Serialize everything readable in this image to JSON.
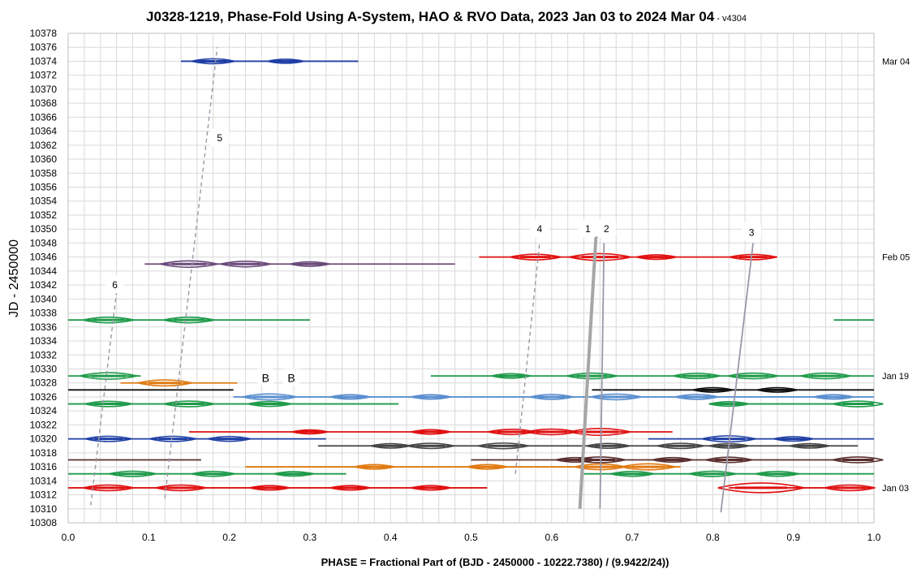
{
  "chart_data": {
    "type": "line",
    "title": "J0328-1219, Phase-Fold Using A-System, HAO & RVO Data, 2023 Jan 03 to 2024 Mar 04",
    "title_suffix": " - v4304",
    "xlabel": "PHASE = Fractional Part of (BJD - 2450000 - 10222.7380) / (9.9422/24))",
    "ylabel": "JD - 2450000",
    "xlim": [
      0,
      1
    ],
    "ylim": [
      10308,
      10378
    ],
    "x_ticks": [
      "0.0",
      "0.1",
      "0.2",
      "0.3",
      "0.4",
      "0.5",
      "0.6",
      "0.7",
      "0.8",
      "0.9",
      "1.0"
    ],
    "y_ticks": [
      "10308",
      "10310",
      "10312",
      "10314",
      "10316",
      "10318",
      "10320",
      "10322",
      "10324",
      "10326",
      "10328",
      "10330",
      "10332",
      "10334",
      "10336",
      "10338",
      "10340",
      "10342",
      "10344",
      "10346",
      "10348",
      "10350",
      "10352",
      "10354",
      "10356",
      "10358",
      "10360",
      "10362",
      "10364",
      "10366",
      "10368",
      "10370",
      "10372",
      "10374",
      "10376",
      "10378"
    ],
    "grid": true,
    "date_labels": [
      {
        "text": "Mar 04",
        "y": 10374
      },
      {
        "text": "Feb 05",
        "y": 10346
      },
      {
        "text": "Jan 19",
        "y": 10329
      },
      {
        "text": "Jan 03",
        "y": 10313
      }
    ],
    "segments": [
      {
        "y": 10374,
        "color": "#1f3fa6",
        "ranges": [
          [
            0.14,
            0.36
          ]
        ],
        "bumps": [
          [
            0.18,
            0.4
          ],
          [
            0.27,
            0.2
          ]
        ]
      },
      {
        "y": 10345,
        "color": "#6b4a7a",
        "ranges": [
          [
            0.095,
            0.48
          ]
        ],
        "bumps": [
          [
            0.15,
            0.8
          ],
          [
            0.22,
            0.6
          ],
          [
            0.3,
            0.3
          ]
        ]
      },
      {
        "y": 10346,
        "color": "#e01010",
        "ranges": [
          [
            0.51,
            0.88
          ]
        ],
        "bumps": [
          [
            0.58,
            0.6
          ],
          [
            0.66,
            0.9
          ],
          [
            0.73,
            0.3
          ],
          [
            0.85,
            0.5
          ]
        ]
      },
      {
        "y": 10337,
        "color": "#1e9a4a",
        "ranges": [
          [
            0.0,
            0.3
          ],
          [
            0.95,
            1.0
          ]
        ],
        "bumps": [
          [
            0.05,
            0.6
          ],
          [
            0.15,
            0.6
          ]
        ]
      },
      {
        "y": 10329,
        "color": "#1e9a4a",
        "ranges": [
          [
            0.0,
            0.09
          ],
          [
            0.45,
            1.0
          ]
        ],
        "bumps": [
          [
            0.05,
            0.8
          ],
          [
            0.55,
            0.3
          ],
          [
            0.65,
            0.6
          ],
          [
            0.78,
            0.5
          ],
          [
            0.85,
            0.6
          ],
          [
            0.94,
            0.6
          ]
        ]
      },
      {
        "y": 10328,
        "color": "#e07a10",
        "ranges": [
          [
            0.065,
            0.21
          ]
        ],
        "bumps": [
          [
            0.12,
            0.7
          ]
        ]
      },
      {
        "y": 10327,
        "color": "#111111",
        "ranges": [
          [
            0.0,
            0.205
          ],
          [
            0.65,
            1.0
          ]
        ],
        "bumps": [
          [
            0.8,
            0.3
          ],
          [
            0.88,
            0.3
          ]
        ]
      },
      {
        "y": 10326,
        "color": "#5b8fcf",
        "ranges": [
          [
            0.205,
            1.0
          ]
        ],
        "bumps": [
          [
            0.25,
            0.7
          ],
          [
            0.35,
            0.3
          ],
          [
            0.45,
            0.3
          ],
          [
            0.6,
            0.4
          ],
          [
            0.68,
            0.6
          ],
          [
            0.78,
            0.4
          ],
          [
            0.95,
            0.3
          ]
        ]
      },
      {
        "y": 10325,
        "color": "#1e9a4a",
        "ranges": [
          [
            0.0,
            0.41
          ],
          [
            0.8,
            1.0
          ]
        ],
        "bumps": [
          [
            0.05,
            0.5
          ],
          [
            0.15,
            0.6
          ],
          [
            0.25,
            0.4
          ],
          [
            0.82,
            0.3
          ],
          [
            0.98,
            0.6
          ]
        ]
      },
      {
        "y": 10321,
        "color": "#e01010",
        "ranges": [
          [
            0.15,
            0.75
          ]
        ],
        "bumps": [
          [
            0.3,
            0.2
          ],
          [
            0.45,
            0.3
          ],
          [
            0.55,
            0.5
          ],
          [
            0.6,
            0.6
          ],
          [
            0.66,
            0.9
          ]
        ]
      },
      {
        "y": 10320,
        "color": "#1f3fa6",
        "ranges": [
          [
            0.0,
            0.32
          ],
          [
            0.72,
            1.0
          ]
        ],
        "bumps": [
          [
            0.05,
            0.5
          ],
          [
            0.13,
            0.5
          ],
          [
            0.2,
            0.4
          ],
          [
            0.82,
            0.7
          ],
          [
            0.9,
            0.3
          ]
        ]
      },
      {
        "y": 10319,
        "color": "#444444",
        "ranges": [
          [
            0.31,
            0.98
          ]
        ],
        "bumps": [
          [
            0.4,
            0.3
          ],
          [
            0.45,
            0.5
          ],
          [
            0.54,
            0.6
          ],
          [
            0.67,
            0.4
          ],
          [
            0.76,
            0.5
          ],
          [
            0.82,
            0.3
          ],
          [
            0.92,
            0.3
          ]
        ]
      },
      {
        "y": 10317,
        "color": "#5a2e2e",
        "ranges": [
          [
            0.0,
            0.165
          ],
          [
            0.5,
            1.0
          ]
        ],
        "bumps": [
          [
            0.63,
            0.3
          ],
          [
            0.66,
            0.6
          ],
          [
            0.75,
            0.3
          ],
          [
            0.82,
            0.5
          ],
          [
            0.98,
            0.6
          ]
        ]
      },
      {
        "y": 10316,
        "color": "#e07a10",
        "ranges": [
          [
            0.22,
            0.76
          ]
        ],
        "bumps": [
          [
            0.38,
            0.3
          ],
          [
            0.52,
            0.3
          ],
          [
            0.66,
            0.6
          ],
          [
            0.72,
            0.7
          ]
        ]
      },
      {
        "y": 10315,
        "color": "#1e9a4a",
        "ranges": [
          [
            0.0,
            0.345
          ],
          [
            0.64,
            1.0
          ]
        ],
        "bumps": [
          [
            0.08,
            0.5
          ],
          [
            0.18,
            0.4
          ],
          [
            0.28,
            0.3
          ],
          [
            0.7,
            0.4
          ],
          [
            0.8,
            0.5
          ],
          [
            0.88,
            0.4
          ]
        ]
      },
      {
        "y": 10313,
        "color": "#e01010",
        "ranges": [
          [
            0.0,
            0.52
          ],
          [
            0.82,
            1.0
          ]
        ],
        "bumps": [
          [
            0.05,
            0.6
          ],
          [
            0.14,
            0.6
          ],
          [
            0.25,
            0.3
          ],
          [
            0.35,
            0.3
          ],
          [
            0.45,
            0.3
          ],
          [
            0.86,
            1.6
          ],
          [
            0.97,
            0.6
          ]
        ]
      }
    ],
    "trend_lines": [
      {
        "label": "5",
        "style": "dashed",
        "x1": 0.12,
        "y1": 10311.5,
        "x2": 0.185,
        "y2": 10376,
        "label_x": 0.188,
        "label_y": 10363
      },
      {
        "label": "6",
        "style": "dashed",
        "x1": 0.028,
        "y1": 10310.5,
        "x2": 0.06,
        "y2": 10341,
        "label_x": 0.058,
        "label_y": 10342
      },
      {
        "label": "4",
        "style": "dashed",
        "x1": 0.555,
        "y1": 10315,
        "x2": 0.585,
        "y2": 10348,
        "label_x": 0.585,
        "label_y": 10350
      },
      {
        "label": "1",
        "style": "thick",
        "x1": 0.635,
        "y1": 10310,
        "x2": 0.655,
        "y2": 10349,
        "label_x": 0.645,
        "label_y": 10350
      },
      {
        "label": "2",
        "style": "solid",
        "x1": 0.66,
        "y1": 10310,
        "x2": 0.665,
        "y2": 10348,
        "label_x": 0.668,
        "label_y": 10350
      },
      {
        "label": "3",
        "style": "solid",
        "x1": 0.81,
        "y1": 10309.5,
        "x2": 0.85,
        "y2": 10348,
        "label_x": 0.848,
        "label_y": 10349.5
      }
    ],
    "annotations": [
      {
        "text": "B",
        "x": 0.245,
        "y": 10328.5
      },
      {
        "text": "B",
        "x": 0.277,
        "y": 10328.5
      }
    ]
  }
}
